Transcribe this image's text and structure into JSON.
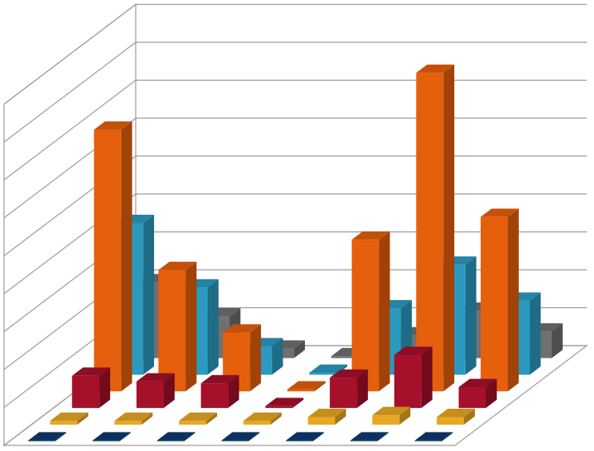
{
  "chart_data": {
    "type": "bar",
    "subtype": "3d-column",
    "title": "",
    "xlabel": "",
    "ylabel": "",
    "grid": true,
    "legend": "none",
    "ylim": [
      0,
      9
    ],
    "categories": [
      "",
      "",
      "",
      "",
      "",
      "",
      ""
    ],
    "series": [
      {
        "color": "#0e3a6e",
        "values": [
          0.02,
          0.02,
          0.02,
          0.02,
          0.02,
          0.02,
          0.02
        ]
      },
      {
        "color": "#e8a823",
        "values": [
          0.1,
          0.1,
          0.1,
          0.1,
          0.2,
          0.25,
          0.2
        ]
      },
      {
        "color": "#a5102a",
        "values": [
          0.85,
          0.7,
          0.65,
          0.05,
          0.8,
          1.4,
          0.55
        ]
      },
      {
        "color": "#e65f0c",
        "values": [
          6.9,
          3.2,
          1.55,
          0.05,
          4.0,
          8.4,
          4.6
        ]
      },
      {
        "color": "#2b9ac0",
        "values": [
          4.0,
          2.3,
          0.75,
          0.05,
          1.75,
          2.9,
          1.95
        ]
      },
      {
        "color": "#707070",
        "values": [
          2.0,
          1.1,
          0.25,
          0.05,
          0.6,
          1.25,
          0.7
        ]
      }
    ]
  }
}
